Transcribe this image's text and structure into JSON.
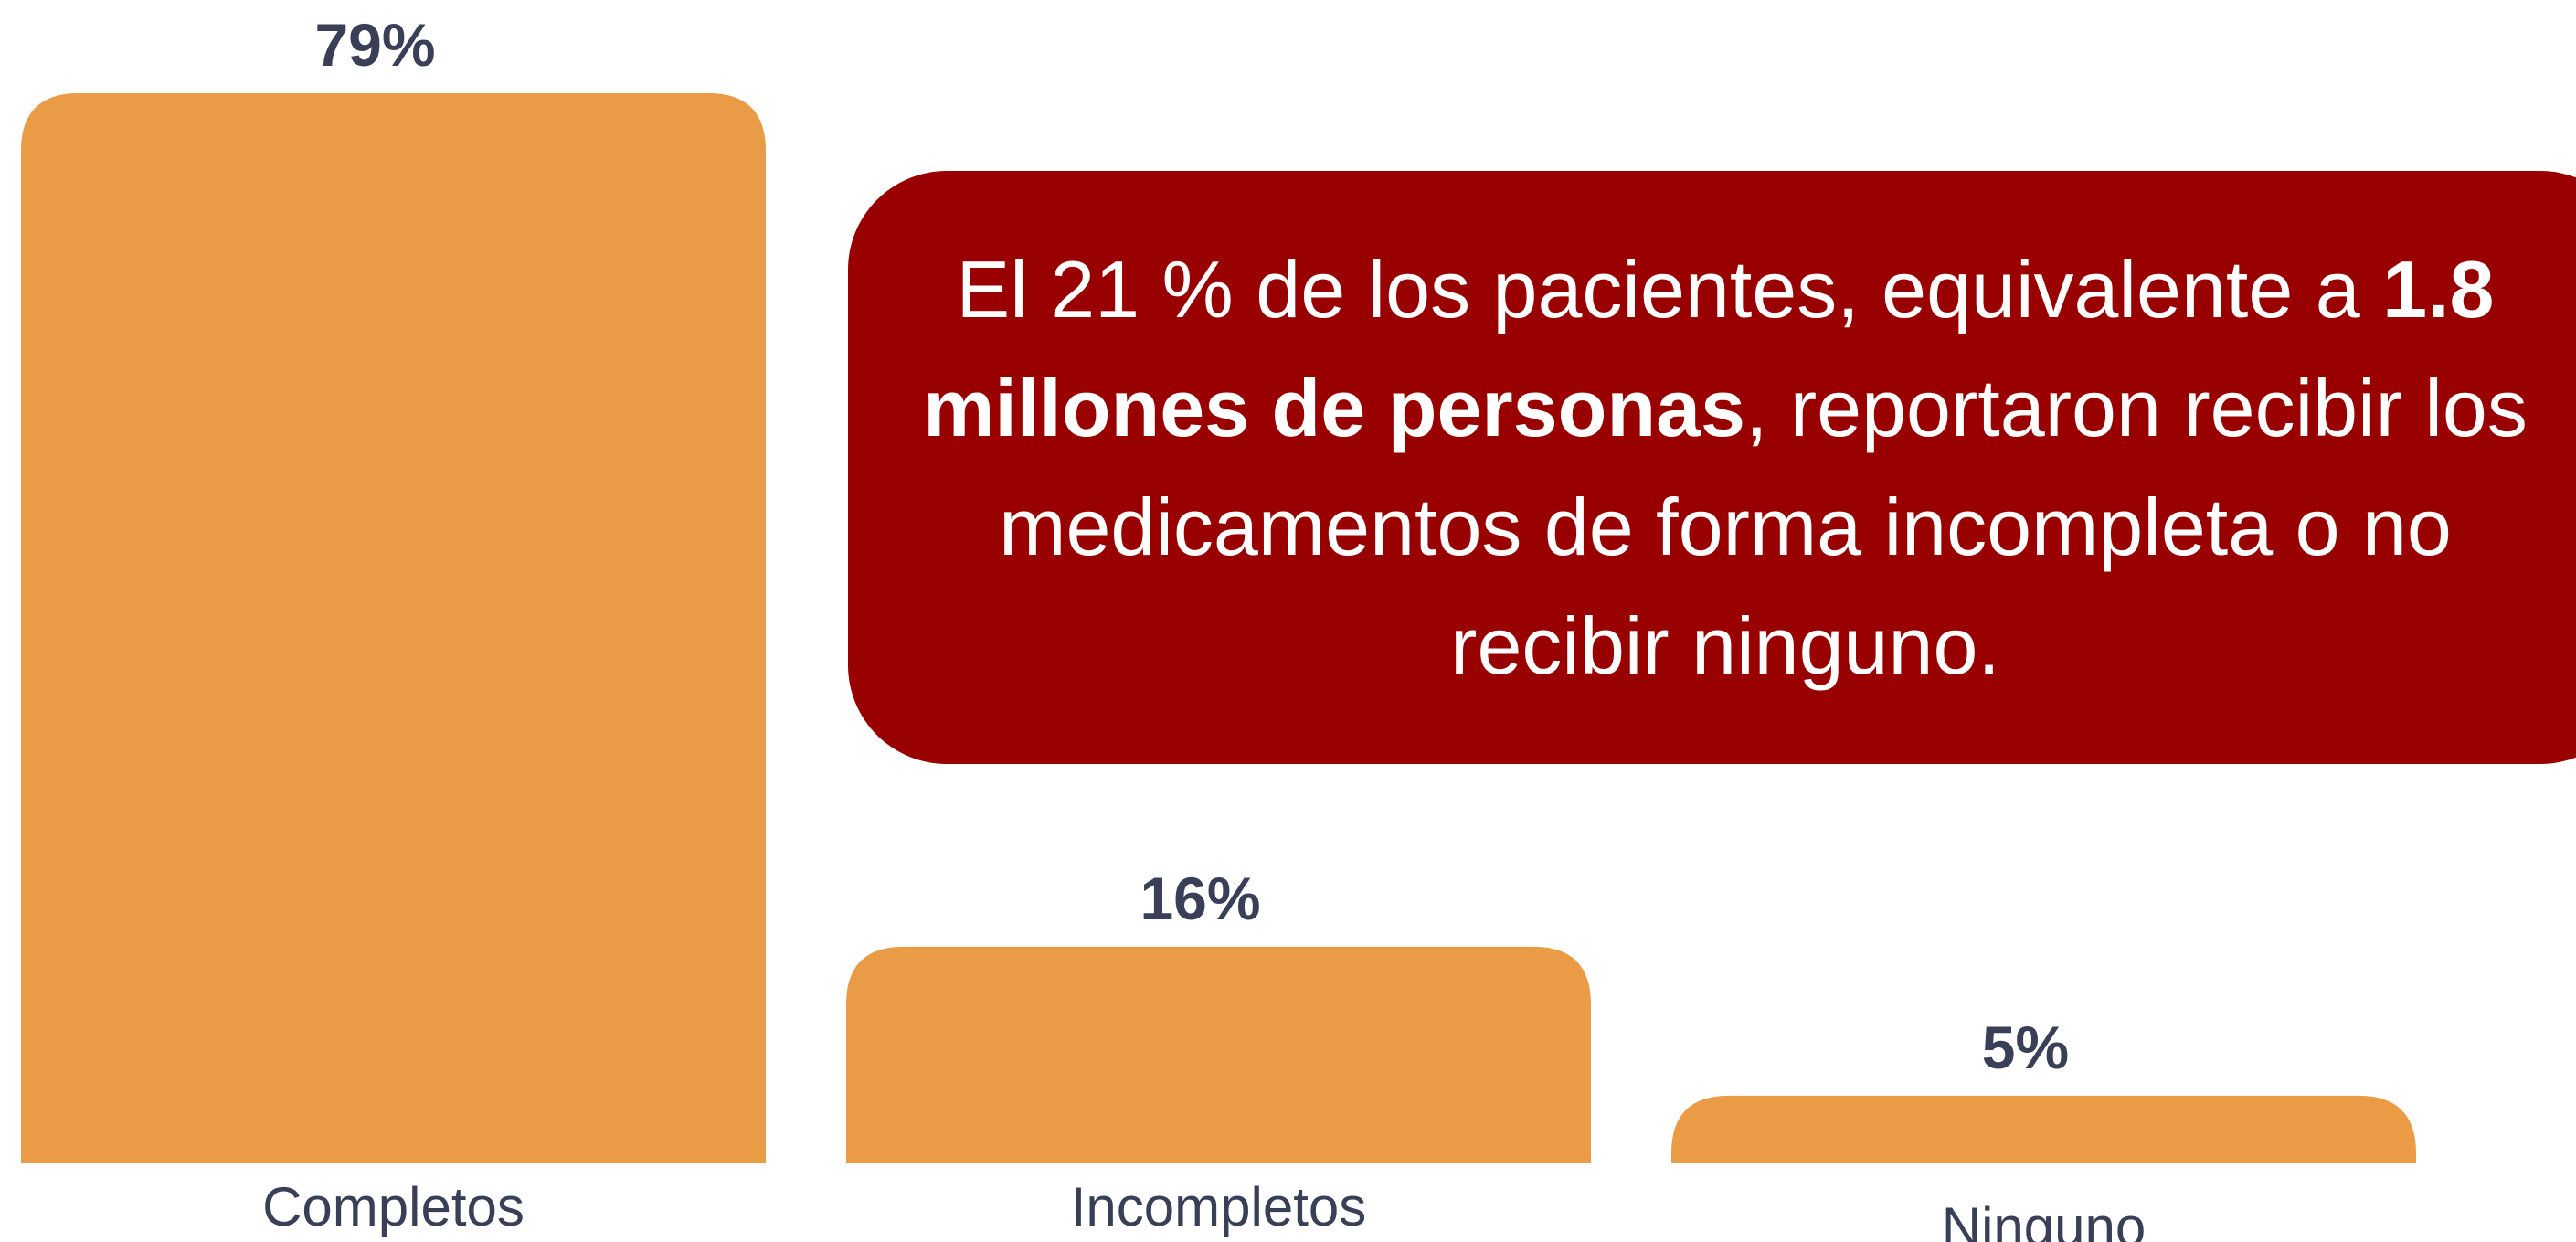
{
  "chart_data": {
    "type": "bar",
    "categories": [
      "Completos",
      "Incompletos",
      "Ninguno"
    ],
    "values": [
      79,
      16,
      5
    ],
    "value_labels": [
      "79%",
      "16%",
      "5%"
    ],
    "color": "#EA9B45",
    "annotation": {
      "before": "El 21 % de los pacientes, equivalente a ",
      "bold": "1.8 millones de personas",
      "after": ", reportaron recibir los medicamentos de forma incompleta o no recibir ninguno."
    }
  }
}
